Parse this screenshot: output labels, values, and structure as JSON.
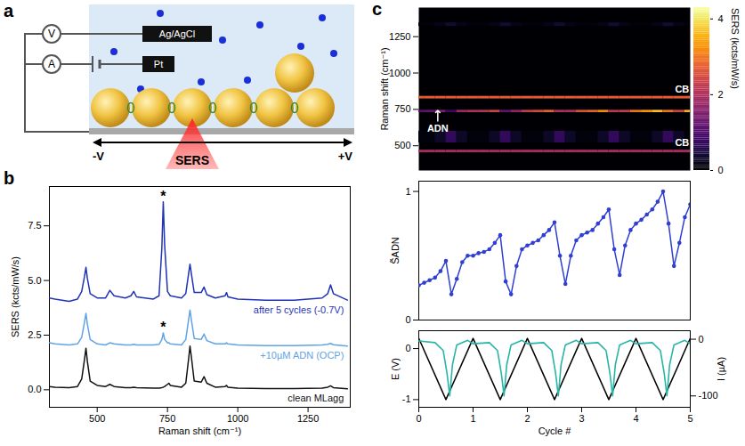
{
  "diagram": {
    "panel_label": "a",
    "voltmeter": "V",
    "ammeter": "A",
    "reference_electrode": "Ag/AgCl",
    "counter_electrode": "Pt",
    "left_potential": "-V",
    "right_potential": "+V",
    "probe": "SERS"
  },
  "chart_data": [
    {
      "panel_label": "b",
      "type": "line",
      "xlabel": "Raman shift (cm⁻¹)",
      "ylabel": "SERS (kcts/mW/s)",
      "x": [
        330,
        350,
        400,
        430,
        445,
        455,
        460,
        465,
        475,
        500,
        530,
        545,
        560,
        600,
        620,
        630,
        640,
        700,
        720,
        730,
        735,
        740,
        750,
        755,
        760,
        800,
        815,
        825,
        830,
        835,
        845,
        870,
        880,
        890,
        920,
        955,
        960,
        965,
        1000,
        1100,
        1200,
        1300,
        1320,
        1330,
        1340,
        1390
      ],
      "series": [
        {
          "name": "after 5 cycles (-0.7V)",
          "color": "#1f33b5",
          "values": [
            4.2,
            4.15,
            4.05,
            4.15,
            4.5,
            5.2,
            5.6,
            5.1,
            4.4,
            4.2,
            4.2,
            4.55,
            4.3,
            4.2,
            4.3,
            4.5,
            4.25,
            4.15,
            4.3,
            6.5,
            8.6,
            6.6,
            4.5,
            4.4,
            4.3,
            4.2,
            4.4,
            5.3,
            5.75,
            5.3,
            4.45,
            4.45,
            4.7,
            4.35,
            4.2,
            4.3,
            4.45,
            4.25,
            4.15,
            4.1,
            4.1,
            4.2,
            4.4,
            4.8,
            4.4,
            4.1
          ]
        },
        {
          "name": "+10µM ADN (OCP)",
          "color": "#5fa3e6",
          "values": [
            2.15,
            2.1,
            2.05,
            2.1,
            2.4,
            3.1,
            3.5,
            3.0,
            2.3,
            2.1,
            2.05,
            2.15,
            2.1,
            2.05,
            2.05,
            2.08,
            2.05,
            2.05,
            2.08,
            2.3,
            2.6,
            2.3,
            2.15,
            2.15,
            2.1,
            2.05,
            2.3,
            3.2,
            3.65,
            3.2,
            2.35,
            2.3,
            2.55,
            2.25,
            2.1,
            2.1,
            2.15,
            2.1,
            2.05,
            2.02,
            2.02,
            2.05,
            2.08,
            2.12,
            2.06,
            2.0
          ]
        },
        {
          "name": "clean MLagg",
          "color": "#111111",
          "values": [
            0.15,
            0.12,
            0.1,
            0.15,
            0.5,
            1.4,
            1.9,
            1.3,
            0.4,
            0.2,
            0.15,
            0.25,
            0.15,
            0.1,
            0.1,
            0.12,
            0.1,
            0.08,
            0.08,
            0.1,
            0.12,
            0.15,
            0.25,
            0.3,
            0.2,
            0.12,
            0.3,
            1.4,
            2.0,
            1.5,
            0.4,
            0.35,
            0.6,
            0.3,
            0.12,
            0.15,
            0.2,
            0.12,
            0.08,
            0.06,
            0.06,
            0.08,
            0.12,
            0.18,
            0.1,
            0.05
          ]
        }
      ],
      "xlim": [
        330,
        1400
      ],
      "xticks": [
        500,
        750,
        1000,
        1250
      ],
      "ylim": [
        -0.8,
        9.3
      ],
      "yticks": [
        {
          "value": 0,
          "label": "0.0"
        },
        {
          "value": 2.5,
          "label": "2.5"
        },
        {
          "value": 5,
          "label": "5.0"
        },
        {
          "value": 7.5,
          "label": "7.5"
        }
      ],
      "annotations": [
        {
          "text": "*",
          "x": 735,
          "y": 8.85
        },
        {
          "text": "*",
          "x": 735,
          "y": 2.85
        }
      ]
    },
    {
      "panel_label": "c",
      "type": "heatmap",
      "ylabel": "Raman shift (cm⁻¹)",
      "x": [
        0,
        0.2,
        0.4,
        0.6,
        0.8,
        1,
        1.2,
        1.4,
        1.6,
        1.8,
        2,
        2.2,
        2.4,
        2.6,
        2.8,
        3,
        3.2,
        3.4,
        3.6,
        3.8,
        4,
        4.2,
        4.4,
        4.6,
        4.8,
        5
      ],
      "xlim": [
        0,
        5
      ],
      "ylim": [
        330,
        1450
      ],
      "yticks": [
        500,
        750,
        1000,
        1250
      ],
      "tick_labels": "y",
      "color": "inferno",
      "color_label": "SERS (kcts/mW/s)",
      "color_range": [
        0,
        4.3
      ],
      "color_ticks": [
        0,
        2,
        4
      ],
      "bands": [
        {
          "raman_shift": [
            452,
            470
          ],
          "values": [
            1.9,
            1.9,
            1.9,
            1.9,
            1.9,
            1.9,
            1.9,
            1.9,
            1.9,
            1.9,
            1.9,
            1.9,
            1.9,
            1.9,
            1.9,
            1.9,
            1.9,
            1.9,
            1.9,
            1.9,
            1.9,
            1.9,
            1.9,
            1.9,
            1.9,
            1.9
          ]
        },
        {
          "raman_shift": [
            520,
            600
          ],
          "values": [
            0.1,
            0.1,
            0.3,
            0.7,
            0.3,
            0.1,
            0.1,
            0.3,
            0.7,
            0.3,
            0.1,
            0.1,
            0.3,
            0.7,
            0.3,
            0.1,
            0.1,
            0.3,
            0.7,
            0.3,
            0.1,
            0.1,
            0.3,
            0.7,
            0.3,
            0.1
          ]
        },
        {
          "raman_shift": [
            728,
            744
          ],
          "values": [
            1.1,
            1.2,
            1.5,
            0.8,
            1.8,
            2.0,
            2.1,
            2.4,
            1.2,
            1.7,
            2.3,
            2.5,
            2.8,
            2.0,
            2.0,
            2.6,
            2.8,
            3.2,
            2.2,
            2.3,
            3.0,
            3.3,
            3.7,
            3.0,
            2.4,
            3.6
          ]
        },
        {
          "raman_shift": [
            822,
            840
          ],
          "values": [
            2.7,
            2.7,
            2.7,
            2.7,
            2.7,
            2.7,
            2.7,
            2.7,
            2.7,
            2.7,
            2.7,
            2.7,
            2.7,
            2.7,
            2.7,
            2.7,
            2.7,
            2.7,
            2.7,
            2.7,
            2.7,
            2.7,
            2.7,
            2.7,
            2.7,
            2.7
          ]
        },
        {
          "raman_shift": [
            1320,
            1345
          ],
          "values": [
            0.1,
            0.1,
            0.2,
            0.4,
            0.2,
            0.1,
            0.1,
            0.2,
            0.4,
            0.2,
            0.1,
            0.1,
            0.2,
            0.4,
            0.2,
            0.1,
            0.1,
            0.2,
            0.4,
            0.2,
            0.1,
            0.1,
            0.2,
            0.4,
            0.2,
            0.1
          ]
        }
      ],
      "annotations": [
        {
          "text": "ADN",
          "x": 0.35,
          "y": 620,
          "marker": "arrow"
        },
        {
          "text": "CB",
          "x": 4.85,
          "y": 885
        },
        {
          "text": "CB",
          "x": 4.85,
          "y": 520
        }
      ]
    },
    {
      "type": "line",
      "ylabel": "S̃ADN",
      "color": "#2f3fd4",
      "marker": "circle",
      "x": [
        0,
        0.1,
        0.2,
        0.3,
        0.4,
        0.5,
        0.6,
        0.7,
        0.8,
        0.9,
        1,
        1.1,
        1.2,
        1.3,
        1.4,
        1.5,
        1.6,
        1.7,
        1.8,
        1.9,
        2,
        2.1,
        2.2,
        2.3,
        2.4,
        2.5,
        2.6,
        2.7,
        2.8,
        2.9,
        3,
        3.1,
        3.2,
        3.3,
        3.4,
        3.5,
        3.6,
        3.7,
        3.8,
        3.9,
        4,
        4.1,
        4.2,
        4.3,
        4.4,
        4.5,
        4.6,
        4.7,
        4.8,
        4.9,
        5
      ],
      "values": [
        0.27,
        0.29,
        0.31,
        0.33,
        0.38,
        0.46,
        0.2,
        0.32,
        0.45,
        0.5,
        0.5,
        0.52,
        0.53,
        0.55,
        0.6,
        0.66,
        0.3,
        0.2,
        0.42,
        0.55,
        0.58,
        0.6,
        0.62,
        0.66,
        0.7,
        0.76,
        0.5,
        0.28,
        0.5,
        0.62,
        0.66,
        0.68,
        0.7,
        0.75,
        0.8,
        0.86,
        0.55,
        0.35,
        0.58,
        0.7,
        0.75,
        0.78,
        0.82,
        0.86,
        0.92,
        1.0,
        0.75,
        0.42,
        0.6,
        0.8,
        0.9
      ],
      "xlim": [
        0,
        5
      ],
      "ylim": [
        0,
        1.08
      ],
      "yticks": [
        0,
        1
      ],
      "tick_labels": "y"
    },
    {
      "type": "line",
      "xlabel": "Cycle #",
      "xlim": [
        0,
        5
      ],
      "xticks": [
        0,
        1,
        2,
        3,
        4,
        5
      ],
      "ylim": [
        -1.15,
        0.35
      ],
      "yticks": [
        0,
        -1
      ],
      "y2lim": [
        -120,
        15
      ],
      "y2ticks": [
        0,
        -100
      ],
      "series": [
        {
          "name": "E (V)",
          "color": "#000000",
          "x": [
            0,
            0.5,
            1,
            1.5,
            2,
            2.5,
            3,
            3.5,
            4,
            4.5,
            5
          ],
          "values": [
            0.2,
            -1,
            0.2,
            -1,
            0.2,
            -1,
            0.2,
            -1,
            0.2,
            -1,
            0.2
          ]
        },
        {
          "name": "I (µA)",
          "color": "#26b5a6",
          "axis": "y2",
          "x": [
            0,
            0.3,
            0.45,
            0.52,
            0.57,
            0.62,
            0.7,
            0.9,
            1,
            1.3,
            1.45,
            1.52,
            1.57,
            1.62,
            1.7,
            1.9,
            2,
            2.3,
            2.45,
            2.52,
            2.57,
            2.62,
            2.7,
            2.9,
            3,
            3.3,
            3.45,
            3.52,
            3.57,
            3.62,
            3.7,
            3.9,
            4,
            4.3,
            4.45,
            4.52,
            4.57,
            4.62,
            4.7,
            4.9,
            5
          ],
          "values": [
            -3,
            -6,
            -20,
            -60,
            -100,
            -45,
            -10,
            -2,
            -8,
            -6,
            -20,
            -60,
            -100,
            -45,
            -10,
            -2,
            -8,
            -6,
            -20,
            -60,
            -100,
            -45,
            -10,
            -2,
            -8,
            -6,
            -20,
            -60,
            -100,
            -45,
            -10,
            -2,
            -8,
            -6,
            -20,
            -60,
            -100,
            -45,
            -10,
            -2,
            -8
          ]
        }
      ]
    }
  ]
}
